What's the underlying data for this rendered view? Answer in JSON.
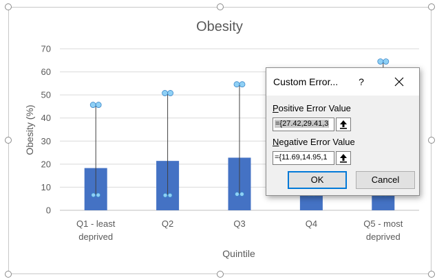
{
  "chart_data": {
    "type": "bar",
    "title": "Obesity",
    "xlabel": "Quintile",
    "ylabel": "Obesity (%)",
    "ylim": [
      0,
      70
    ],
    "yticks": [
      "0",
      "10",
      "20",
      "30",
      "40",
      "50",
      "60",
      "70"
    ],
    "grid": true,
    "categories": [
      [
        "Q1 - least",
        "deprived"
      ],
      [
        "Q2"
      ],
      [
        "Q3"
      ],
      [
        "Q4"
      ],
      [
        "Q5 - most",
        "deprived"
      ]
    ],
    "values": [
      18.3,
      21.4,
      22.8,
      24.0,
      27.2
    ],
    "error_upper": [
      45.7,
      50.8,
      54.6,
      58.0,
      64.5
    ],
    "error_lower": [
      6.6,
      6.5,
      7.0,
      7.0,
      7.0
    ],
    "colors": {
      "bar": "#4472c4",
      "error_bar": "#404040",
      "handle": "#8fd0f5",
      "grid": "#d9d9d9",
      "text": "#595959"
    }
  },
  "dialog": {
    "title": "Custom Error...",
    "help": "?",
    "positive_label_accel": "P",
    "positive_label_rest": "ositive Error Value",
    "positive_value": "={27.42,29.41,3",
    "negative_label_accel": "N",
    "negative_label_rest": "egative Error Value",
    "negative_value": "={11.69,14.95,1",
    "ok": "OK",
    "cancel": "Cancel"
  },
  "icons": [
    "close-icon",
    "collapse-dialog-icon"
  ]
}
